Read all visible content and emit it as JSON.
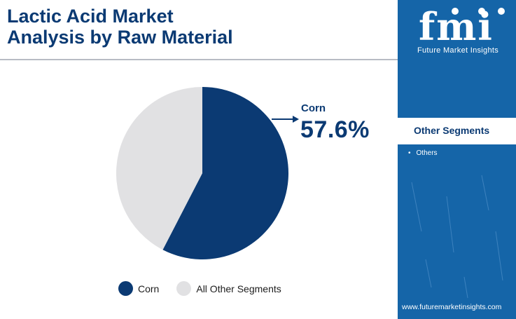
{
  "title_line1": "Lactic Acid Market",
  "title_line2": "Analysis by Raw Material",
  "chart_data": {
    "type": "pie",
    "title": "Lactic Acid Market Analysis by Raw Material",
    "slices": [
      {
        "label": "Corn",
        "value": 57.6,
        "color": "#0b3a73"
      },
      {
        "label": "All Other Segments",
        "value": 42.4,
        "color": "#e1e1e3"
      }
    ],
    "legend_position": "bottom",
    "callout": {
      "label": "Corn",
      "value_text": "57.6%"
    }
  },
  "legend": [
    {
      "label": "Corn",
      "color": "#0b3a73"
    },
    {
      "label": "All Other Segments",
      "color": "#e1e1e3"
    }
  ],
  "logo": {
    "mark": "fmi",
    "subtitle": "Future Market Insights"
  },
  "sidebar": {
    "heading": "Other Segments",
    "items": [
      "Others"
    ],
    "website": "www.futuremarketinsights.com"
  },
  "colors": {
    "brand_blue": "#1565a8",
    "navy": "#0b3a73",
    "light_gray": "#e1e1e3"
  }
}
